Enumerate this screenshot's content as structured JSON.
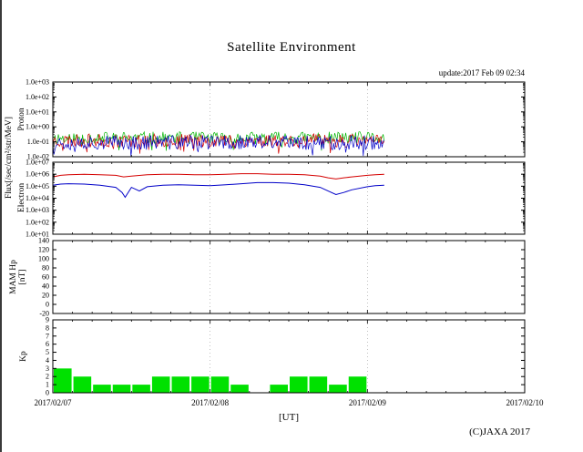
{
  "title": "Satellite Environment",
  "update_label": "update:2017 Feb 09 02:34",
  "copyright": "(C)JAXA 2017",
  "xlabel": "[UT]",
  "flux_ylabel": "Flux[/sec/cm²/str/MeV]",
  "x_axis": {
    "tick_labels": [
      "2017/02/07",
      "2017/02/08",
      "2017/02/09",
      "2017/02/10"
    ],
    "tick_values_days": [
      0,
      1,
      2,
      3
    ],
    "minor_tick_hours": 3,
    "range_days": [
      0,
      3
    ]
  },
  "chart_data": [
    {
      "type": "line",
      "panel": "proton",
      "ylabel": "Proton",
      "yscale": "log",
      "ylim": [
        0.01,
        1000
      ],
      "ytick_values": [
        1000,
        100,
        10,
        1,
        0.1,
        0.01
      ],
      "ytick_labels": [
        "1.0e+03",
        "1.0e+02",
        "1.0e+01",
        "1.0e+00",
        "1.0e-01",
        "1.0e-02"
      ],
      "data_end_day": 2.107,
      "note": "dense noisy band around 1.0e-01, data ends 2017/02/09 02:34",
      "series": [
        {
          "name": "proton-green",
          "color": "#00b400",
          "baseline": 0.18,
          "noise_decades": 0.42,
          "seed": 11
        },
        {
          "name": "proton-red",
          "color": "#d40000",
          "baseline": 0.12,
          "noise_decades": 0.45,
          "seed": 23
        },
        {
          "name": "proton-blue",
          "color": "#0000c8",
          "baseline": 0.09,
          "noise_decades": 0.5,
          "seed": 37
        }
      ]
    },
    {
      "type": "line",
      "panel": "electron",
      "ylabel": "Electron",
      "yscale": "log",
      "ylim": [
        10,
        10000000
      ],
      "ytick_values": [
        10000000,
        1000000,
        100000,
        10000,
        1000,
        100,
        10
      ],
      "ytick_labels": [
        "1.0e+07",
        "1.0e+06",
        "1.0e+05",
        "1.0e+04",
        "1.0e+03",
        "1.0e+02",
        "1.0e+01"
      ],
      "series": [
        {
          "name": "electron-red",
          "color": "#d40000",
          "x_days": [
            0,
            0.05,
            0.1,
            0.2,
            0.3,
            0.4,
            0.45,
            0.5,
            0.6,
            0.7,
            0.8,
            0.9,
            1.0,
            1.1,
            1.2,
            1.3,
            1.4,
            1.5,
            1.6,
            1.7,
            1.75,
            1.8,
            1.85,
            1.9,
            2.0,
            2.05,
            2.107
          ],
          "y": [
            600000.0,
            800000.0,
            900000.0,
            1000000.0,
            900000.0,
            800000.0,
            600000.0,
            700000.0,
            900000.0,
            1000000.0,
            1000000.0,
            900000.0,
            900000.0,
            1000000.0,
            1100000.0,
            1100000.0,
            1000000.0,
            1000000.0,
            900000.0,
            700000.0,
            500000.0,
            400000.0,
            500000.0,
            600000.0,
            800000.0,
            900000.0,
            1000000.0
          ]
        },
        {
          "name": "electron-blue",
          "color": "#0000c8",
          "x_days": [
            0,
            0.05,
            0.1,
            0.2,
            0.3,
            0.4,
            0.44,
            0.46,
            0.5,
            0.55,
            0.6,
            0.7,
            0.8,
            0.9,
            1.0,
            1.1,
            1.2,
            1.3,
            1.4,
            1.5,
            1.6,
            1.7,
            1.75,
            1.8,
            1.85,
            1.9,
            2.0,
            2.05,
            2.107
          ],
          "y": [
            120000.0,
            150000.0,
            160000.0,
            150000.0,
            120000.0,
            80000.0,
            30000.0,
            12000.0,
            80000.0,
            40000.0,
            90000.0,
            120000.0,
            130000.0,
            120000.0,
            110000.0,
            130000.0,
            160000.0,
            200000.0,
            200000.0,
            180000.0,
            130000.0,
            80000.0,
            40000.0,
            20000.0,
            30000.0,
            50000.0,
            90000.0,
            110000.0,
            120000.0
          ]
        }
      ]
    },
    {
      "type": "line",
      "panel": "mam-hp",
      "ylabel_line1": "MAM Hp",
      "ylabel_line2": "[nT]",
      "yscale": "linear",
      "ylim": [
        -20,
        140
      ],
      "ytick_values": [
        140,
        120,
        100,
        80,
        60,
        40,
        20,
        0,
        -20
      ],
      "ytick_labels": [
        "140",
        "120",
        "100",
        "80",
        "60",
        "40",
        "20",
        "0",
        "-20"
      ],
      "note": "no data plotted",
      "series": []
    },
    {
      "type": "bar",
      "panel": "kp",
      "ylabel": "Kp",
      "yscale": "linear",
      "ylim": [
        0,
        9
      ],
      "ytick_values": [
        9,
        8,
        7,
        6,
        5,
        4,
        3,
        2,
        1,
        0
      ],
      "ytick_labels": [
        "9",
        "8",
        "7",
        "6",
        "5",
        "4",
        "3",
        "2",
        "1",
        "0"
      ],
      "bar_color": "#00e100",
      "bin_hours": 3,
      "bins_start": "2017/02/07 00:00",
      "values": [
        3,
        2,
        1,
        1,
        1,
        2,
        2,
        2,
        2,
        1,
        0,
        1,
        2,
        2,
        1,
        2
      ]
    }
  ]
}
